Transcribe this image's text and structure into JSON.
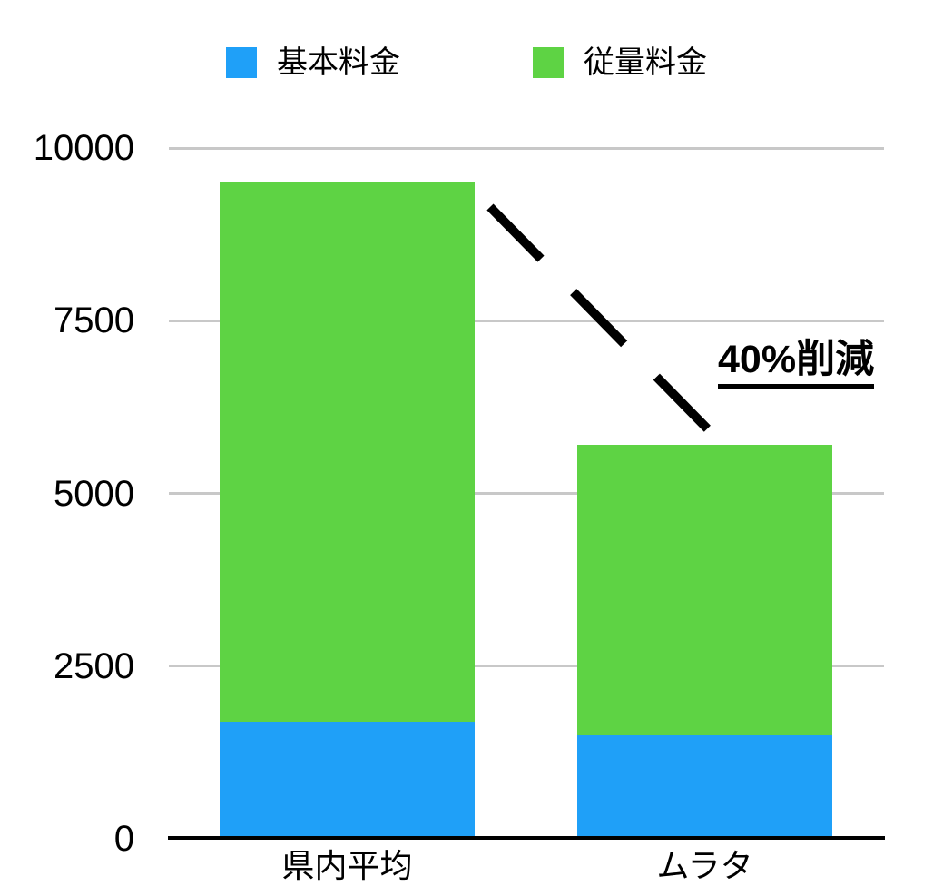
{
  "legend": {
    "items": [
      {
        "label": "基本料金",
        "color": "#1FA0F8"
      },
      {
        "label": "従量料金",
        "color": "#5ED344"
      }
    ]
  },
  "annotation": {
    "text": "40%削減"
  },
  "chart_data": {
    "type": "bar",
    "stacked": true,
    "title": "",
    "xlabel": "",
    "ylabel": "",
    "categories": [
      "県内平均",
      "ムラタ"
    ],
    "series": [
      {
        "name": "基本料金",
        "color": "#1FA0F8",
        "values": [
          1700,
          1500
        ]
      },
      {
        "name": "従量料金",
        "color": "#5ED344",
        "values": [
          7800,
          4200
        ]
      }
    ],
    "totals": [
      9500,
      5700
    ],
    "ylim": [
      0,
      10000
    ],
    "yticks": [
      0,
      2500,
      5000,
      7500,
      10000
    ],
    "ytick_labels": [
      "0",
      "2500",
      "5000",
      "7500",
      "10000"
    ],
    "grid": true,
    "gridline_color": "#c8c8c8",
    "axis_color": "#000000",
    "legend_position": "top",
    "annotation": "40%削減",
    "annotation_meaning": "40% reduction from 9500 to 5700"
  }
}
